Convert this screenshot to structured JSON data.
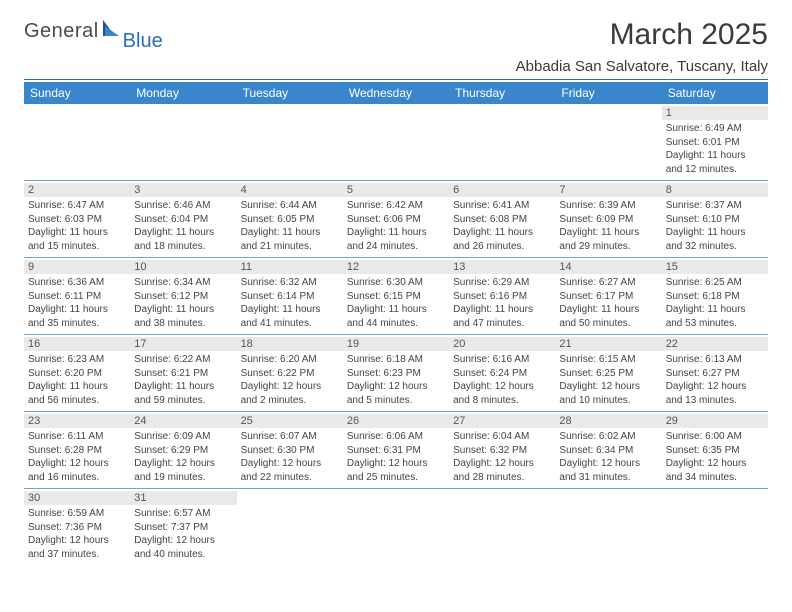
{
  "logo": {
    "part1": "General",
    "part2": "Blue"
  },
  "title": "March 2025",
  "location": "Abbadia San Salvatore, Tuscany, Italy",
  "header_bg": "#3a86cc",
  "rule_color": "#2a6db8",
  "daynum_bg": "#e9e9e9",
  "weekdays": [
    "Sunday",
    "Monday",
    "Tuesday",
    "Wednesday",
    "Thursday",
    "Friday",
    "Saturday"
  ],
  "weeks": [
    [
      null,
      null,
      null,
      null,
      null,
      null,
      {
        "n": "1",
        "sr": "Sunrise: 6:49 AM",
        "ss": "Sunset: 6:01 PM",
        "d1": "Daylight: 11 hours",
        "d2": "and 12 minutes."
      }
    ],
    [
      {
        "n": "2",
        "sr": "Sunrise: 6:47 AM",
        "ss": "Sunset: 6:03 PM",
        "d1": "Daylight: 11 hours",
        "d2": "and 15 minutes."
      },
      {
        "n": "3",
        "sr": "Sunrise: 6:46 AM",
        "ss": "Sunset: 6:04 PM",
        "d1": "Daylight: 11 hours",
        "d2": "and 18 minutes."
      },
      {
        "n": "4",
        "sr": "Sunrise: 6:44 AM",
        "ss": "Sunset: 6:05 PM",
        "d1": "Daylight: 11 hours",
        "d2": "and 21 minutes."
      },
      {
        "n": "5",
        "sr": "Sunrise: 6:42 AM",
        "ss": "Sunset: 6:06 PM",
        "d1": "Daylight: 11 hours",
        "d2": "and 24 minutes."
      },
      {
        "n": "6",
        "sr": "Sunrise: 6:41 AM",
        "ss": "Sunset: 6:08 PM",
        "d1": "Daylight: 11 hours",
        "d2": "and 26 minutes."
      },
      {
        "n": "7",
        "sr": "Sunrise: 6:39 AM",
        "ss": "Sunset: 6:09 PM",
        "d1": "Daylight: 11 hours",
        "d2": "and 29 minutes."
      },
      {
        "n": "8",
        "sr": "Sunrise: 6:37 AM",
        "ss": "Sunset: 6:10 PM",
        "d1": "Daylight: 11 hours",
        "d2": "and 32 minutes."
      }
    ],
    [
      {
        "n": "9",
        "sr": "Sunrise: 6:36 AM",
        "ss": "Sunset: 6:11 PM",
        "d1": "Daylight: 11 hours",
        "d2": "and 35 minutes."
      },
      {
        "n": "10",
        "sr": "Sunrise: 6:34 AM",
        "ss": "Sunset: 6:12 PM",
        "d1": "Daylight: 11 hours",
        "d2": "and 38 minutes."
      },
      {
        "n": "11",
        "sr": "Sunrise: 6:32 AM",
        "ss": "Sunset: 6:14 PM",
        "d1": "Daylight: 11 hours",
        "d2": "and 41 minutes."
      },
      {
        "n": "12",
        "sr": "Sunrise: 6:30 AM",
        "ss": "Sunset: 6:15 PM",
        "d1": "Daylight: 11 hours",
        "d2": "and 44 minutes."
      },
      {
        "n": "13",
        "sr": "Sunrise: 6:29 AM",
        "ss": "Sunset: 6:16 PM",
        "d1": "Daylight: 11 hours",
        "d2": "and 47 minutes."
      },
      {
        "n": "14",
        "sr": "Sunrise: 6:27 AM",
        "ss": "Sunset: 6:17 PM",
        "d1": "Daylight: 11 hours",
        "d2": "and 50 minutes."
      },
      {
        "n": "15",
        "sr": "Sunrise: 6:25 AM",
        "ss": "Sunset: 6:18 PM",
        "d1": "Daylight: 11 hours",
        "d2": "and 53 minutes."
      }
    ],
    [
      {
        "n": "16",
        "sr": "Sunrise: 6:23 AM",
        "ss": "Sunset: 6:20 PM",
        "d1": "Daylight: 11 hours",
        "d2": "and 56 minutes."
      },
      {
        "n": "17",
        "sr": "Sunrise: 6:22 AM",
        "ss": "Sunset: 6:21 PM",
        "d1": "Daylight: 11 hours",
        "d2": "and 59 minutes."
      },
      {
        "n": "18",
        "sr": "Sunrise: 6:20 AM",
        "ss": "Sunset: 6:22 PM",
        "d1": "Daylight: 12 hours",
        "d2": "and 2 minutes."
      },
      {
        "n": "19",
        "sr": "Sunrise: 6:18 AM",
        "ss": "Sunset: 6:23 PM",
        "d1": "Daylight: 12 hours",
        "d2": "and 5 minutes."
      },
      {
        "n": "20",
        "sr": "Sunrise: 6:16 AM",
        "ss": "Sunset: 6:24 PM",
        "d1": "Daylight: 12 hours",
        "d2": "and 8 minutes."
      },
      {
        "n": "21",
        "sr": "Sunrise: 6:15 AM",
        "ss": "Sunset: 6:25 PM",
        "d1": "Daylight: 12 hours",
        "d2": "and 10 minutes."
      },
      {
        "n": "22",
        "sr": "Sunrise: 6:13 AM",
        "ss": "Sunset: 6:27 PM",
        "d1": "Daylight: 12 hours",
        "d2": "and 13 minutes."
      }
    ],
    [
      {
        "n": "23",
        "sr": "Sunrise: 6:11 AM",
        "ss": "Sunset: 6:28 PM",
        "d1": "Daylight: 12 hours",
        "d2": "and 16 minutes."
      },
      {
        "n": "24",
        "sr": "Sunrise: 6:09 AM",
        "ss": "Sunset: 6:29 PM",
        "d1": "Daylight: 12 hours",
        "d2": "and 19 minutes."
      },
      {
        "n": "25",
        "sr": "Sunrise: 6:07 AM",
        "ss": "Sunset: 6:30 PM",
        "d1": "Daylight: 12 hours",
        "d2": "and 22 minutes."
      },
      {
        "n": "26",
        "sr": "Sunrise: 6:06 AM",
        "ss": "Sunset: 6:31 PM",
        "d1": "Daylight: 12 hours",
        "d2": "and 25 minutes."
      },
      {
        "n": "27",
        "sr": "Sunrise: 6:04 AM",
        "ss": "Sunset: 6:32 PM",
        "d1": "Daylight: 12 hours",
        "d2": "and 28 minutes."
      },
      {
        "n": "28",
        "sr": "Sunrise: 6:02 AM",
        "ss": "Sunset: 6:34 PM",
        "d1": "Daylight: 12 hours",
        "d2": "and 31 minutes."
      },
      {
        "n": "29",
        "sr": "Sunrise: 6:00 AM",
        "ss": "Sunset: 6:35 PM",
        "d1": "Daylight: 12 hours",
        "d2": "and 34 minutes."
      }
    ],
    [
      {
        "n": "30",
        "sr": "Sunrise: 6:59 AM",
        "ss": "Sunset: 7:36 PM",
        "d1": "Daylight: 12 hours",
        "d2": "and 37 minutes."
      },
      {
        "n": "31",
        "sr": "Sunrise: 6:57 AM",
        "ss": "Sunset: 7:37 PM",
        "d1": "Daylight: 12 hours",
        "d2": "and 40 minutes."
      },
      null,
      null,
      null,
      null,
      null
    ]
  ]
}
